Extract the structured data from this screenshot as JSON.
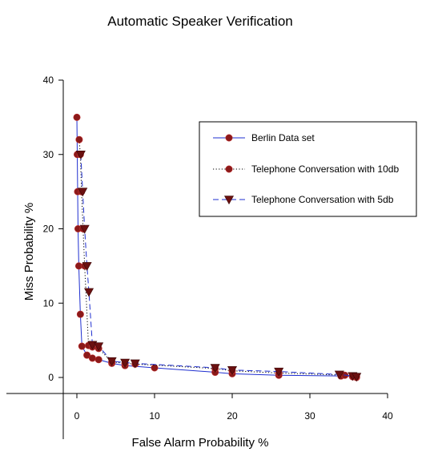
{
  "chart_data": {
    "type": "line",
    "title": "Automatic Speaker Verification",
    "xlabel": "False Alarm Probability %",
    "ylabel": "Miss Probability %",
    "xlim": [
      0,
      40
    ],
    "ylim": [
      0,
      40
    ],
    "xticks": [
      "0",
      "10",
      "20",
      "30",
      "40"
    ],
    "yticks": [
      "0",
      "10",
      "20",
      "30",
      "40"
    ],
    "legend_position": "top-right",
    "grid": false,
    "series": [
      {
        "name": "Berlin Data set",
        "color": "#1f2fd0",
        "line_style": "solid",
        "marker": "circle",
        "x": [
          0.0,
          0.05,
          0.1,
          0.15,
          0.25,
          0.45,
          0.65,
          1.3,
          2.0,
          2.8,
          4.5,
          6.2,
          10.0,
          17.8,
          20.0,
          26.0,
          34.0,
          35.5,
          36.0
        ],
        "y": [
          35.0,
          30.0,
          25.0,
          20.0,
          15.0,
          8.5,
          4.2,
          3.0,
          2.6,
          2.4,
          1.9,
          1.6,
          1.3,
          0.7,
          0.5,
          0.3,
          0.2,
          0.1,
          0.0
        ]
      },
      {
        "name": "Telephone Conversation with 10db",
        "color": "#000000",
        "line_style": "dotted",
        "marker": "circle",
        "x": [
          0.3,
          0.45,
          0.6,
          0.8,
          1.0,
          1.5,
          2.0,
          2.8,
          4.5,
          6.2,
          7.5,
          17.8,
          20.0,
          26.0,
          34.5,
          35.5,
          36.0
        ],
        "y": [
          32.0,
          30.0,
          25.0,
          20.0,
          15.0,
          4.3,
          4.1,
          3.9,
          2.1,
          1.9,
          1.8,
          1.2,
          0.9,
          0.6,
          0.3,
          0.2,
          0.1
        ]
      },
      {
        "name": "Telephone Conversation with 5db",
        "color": "#1f2fd0",
        "line_style": "dashed",
        "marker": "triangle-down",
        "x": [
          0.5,
          0.75,
          1.0,
          1.3,
          1.55,
          2.0,
          2.8,
          4.5,
          6.2,
          7.5,
          17.8,
          20.0,
          26.0,
          33.8,
          35.5,
          36.0
        ],
        "y": [
          30.0,
          25.0,
          20.0,
          15.0,
          11.5,
          4.4,
          4.2,
          2.2,
          2.0,
          1.9,
          1.3,
          1.0,
          0.8,
          0.4,
          0.2,
          0.1
        ]
      }
    ]
  }
}
